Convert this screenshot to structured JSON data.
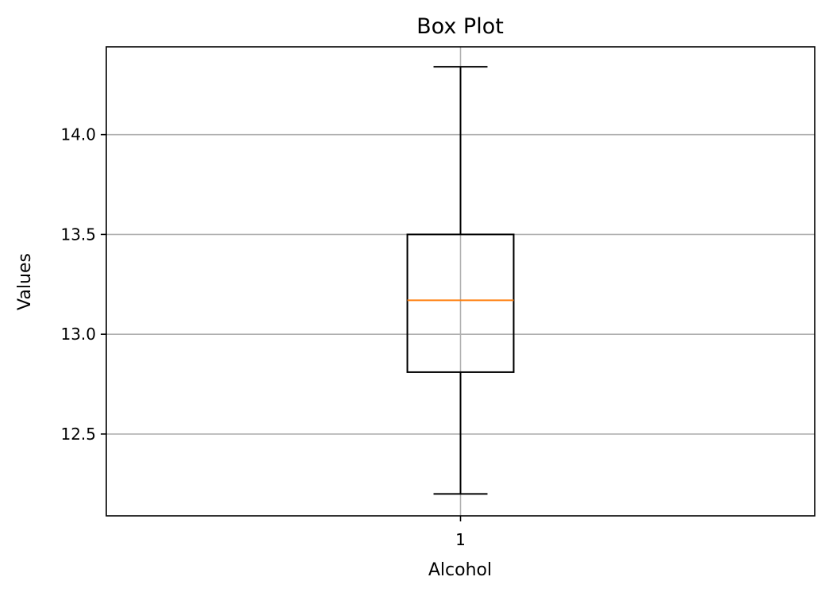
{
  "chart_data": {
    "type": "box",
    "title": "Box Plot",
    "xlabel": "Alcohol",
    "ylabel": "Values",
    "categories": [
      "1"
    ],
    "ylim": [
      12.09,
      14.44
    ],
    "yticks": [
      {
        "value": 12.5,
        "label": "12.5"
      },
      {
        "value": 13.0,
        "label": "13.0"
      },
      {
        "value": 13.5,
        "label": "13.5"
      },
      {
        "value": 14.0,
        "label": "14.0"
      }
    ],
    "boxes": [
      {
        "category": "1",
        "whisker_low": 12.2,
        "q1": 12.81,
        "median": 13.17,
        "q3": 13.5,
        "whisker_high": 14.34
      }
    ],
    "grid": true,
    "colors": {
      "box": "#000000",
      "median": "#ff7f0e",
      "grid": "#b0b0b0"
    }
  }
}
